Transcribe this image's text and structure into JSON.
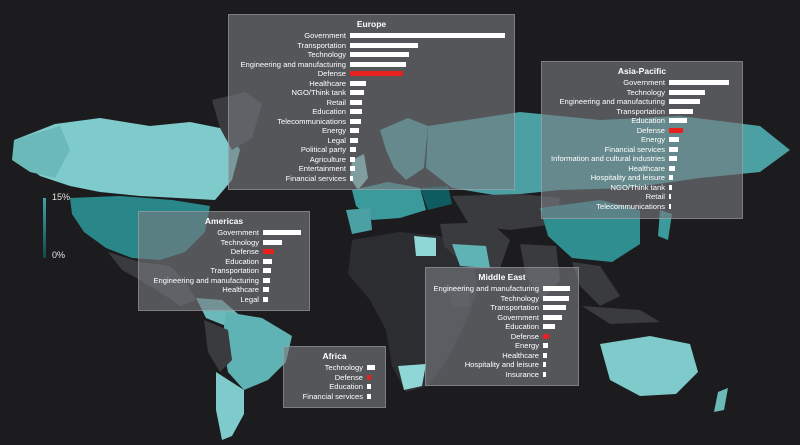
{
  "chart_data": {
    "type": "bar",
    "legend": {
      "max_label": "15%",
      "min_label": "0%",
      "placement": "left"
    },
    "colors": {
      "bar": "#ffffff",
      "highlight": "#e8211f",
      "map_high": "#8fd6d6",
      "map_low": "#2c2d30",
      "background": "#1c1c1e"
    },
    "regions": [
      {
        "title": "Europe",
        "highlight": "Defense",
        "categories": [
          "Government",
          "Transportation",
          "Technology",
          "Engineering and manufacturing",
          "Defense",
          "Healthcare",
          "NGO/Think tank",
          "Retail",
          "Education",
          "Telecommunications",
          "Energy",
          "Legal",
          "Political party",
          "Agriculture",
          "Entertainment",
          "Financial services"
        ],
        "values": [
          100,
          44,
          38,
          36,
          34,
          10,
          9,
          8,
          8,
          7,
          6,
          5,
          4,
          3,
          3,
          2
        ]
      },
      {
        "title": "Asia-Pacific",
        "highlight": "Defense",
        "categories": [
          "Government",
          "Technology",
          "Engineering and manufacturing",
          "Transportation",
          "Education",
          "Defense",
          "Energy",
          "Financial services",
          "Information and cultural industries",
          "Healthcare",
          "Hospitality and leisure",
          "NGO/Think tank",
          "Retail",
          "Telecommunications"
        ],
        "values": [
          100,
          60,
          52,
          40,
          30,
          24,
          16,
          15,
          14,
          10,
          7,
          5,
          4,
          3
        ]
      },
      {
        "title": "Americas",
        "highlight": "Defense",
        "categories": [
          "Government",
          "Technology",
          "Defense",
          "Education",
          "Transportation",
          "Engineering and manufacturing",
          "Healthcare",
          "Legal"
        ],
        "values": [
          100,
          50,
          28,
          24,
          22,
          18,
          15,
          12
        ]
      },
      {
        "title": "Middle East",
        "highlight": "Defense",
        "categories": [
          "Engineering and manufacturing",
          "Technology",
          "Transportation",
          "Government",
          "Education",
          "Defense",
          "Energy",
          "Healthcare",
          "Hospitality and leisure",
          "Insurance"
        ],
        "values": [
          100,
          95,
          85,
          70,
          45,
          22,
          18,
          15,
          12,
          10
        ]
      },
      {
        "title": "Africa",
        "highlight": "Defense",
        "categories": [
          "Technology",
          "Defense",
          "Education",
          "Financial services"
        ],
        "values": [
          100,
          55,
          50,
          45
        ]
      }
    ]
  }
}
